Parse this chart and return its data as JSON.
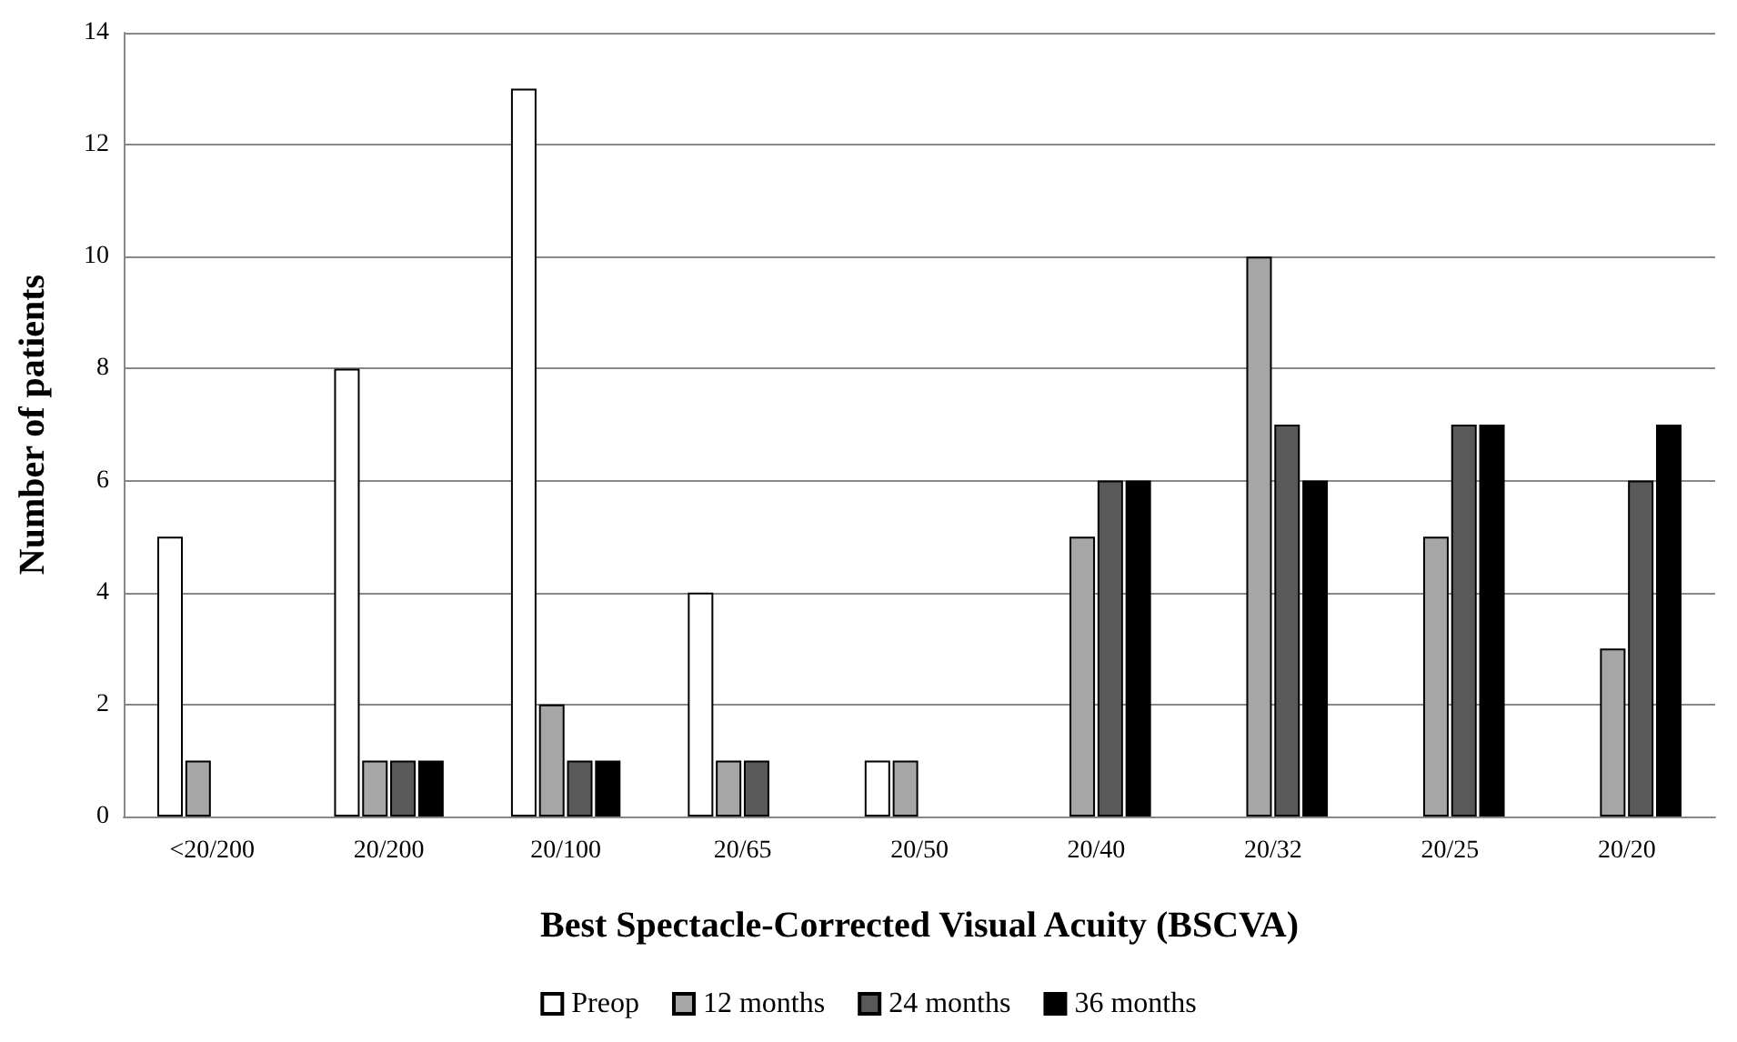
{
  "chart_data": {
    "type": "bar",
    "xlabel": "Best Spectacle-Corrected Visual Acuity (BSCVA)",
    "ylabel": "Number of patients",
    "categories": [
      "<20/200",
      "20/200",
      "20/100",
      "20/65",
      "20/50",
      "20/40",
      "20/32",
      "20/25",
      "20/20"
    ],
    "series": [
      {
        "name": "Preop",
        "color": "#ffffff",
        "values": [
          5,
          8,
          13,
          4,
          1,
          0,
          0,
          0,
          0
        ]
      },
      {
        "name": "12 months",
        "color": "#a6a6a6",
        "values": [
          1,
          1,
          2,
          1,
          1,
          5,
          10,
          5,
          3
        ]
      },
      {
        "name": "24 months",
        "color": "#595959",
        "values": [
          0,
          1,
          1,
          1,
          0,
          6,
          7,
          7,
          6
        ]
      },
      {
        "name": "36 months",
        "color": "#000000",
        "values": [
          0,
          1,
          1,
          0,
          0,
          6,
          6,
          7,
          7
        ]
      }
    ],
    "ylim": [
      0,
      14
    ],
    "yticks": [
      0,
      2,
      4,
      6,
      8,
      10,
      12,
      14
    ],
    "grid": "y",
    "legend": "bottom"
  }
}
